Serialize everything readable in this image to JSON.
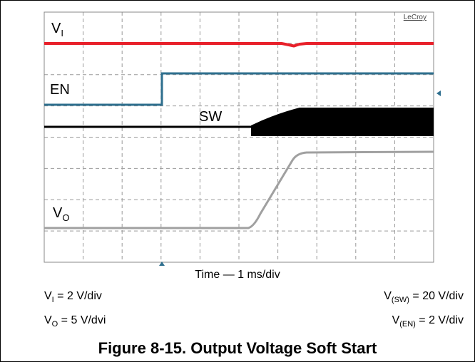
{
  "figure": {
    "brand": "LeCroy",
    "traces": [
      {
        "symbol": "V",
        "sub": "I"
      },
      {
        "symbol": "EN",
        "sub": ""
      },
      {
        "symbol": "SW",
        "sub": ""
      },
      {
        "symbol": "V",
        "sub": "O"
      }
    ],
    "time_base": "Time — 1 ms/div",
    "scales": [
      {
        "symbol": "V",
        "sub": "I",
        "text": " = 2 V/div"
      },
      {
        "symbol": "V",
        "sub": "(SW)",
        "text": " = 20 V/div"
      },
      {
        "symbol": "V",
        "sub": "O",
        "text": " = 5 V/dvi"
      },
      {
        "symbol": "V",
        "sub": "(EN)",
        "text": " = 2 V/div"
      }
    ],
    "caption": "Figure 8-15. Output Voltage Soft Start"
  }
}
